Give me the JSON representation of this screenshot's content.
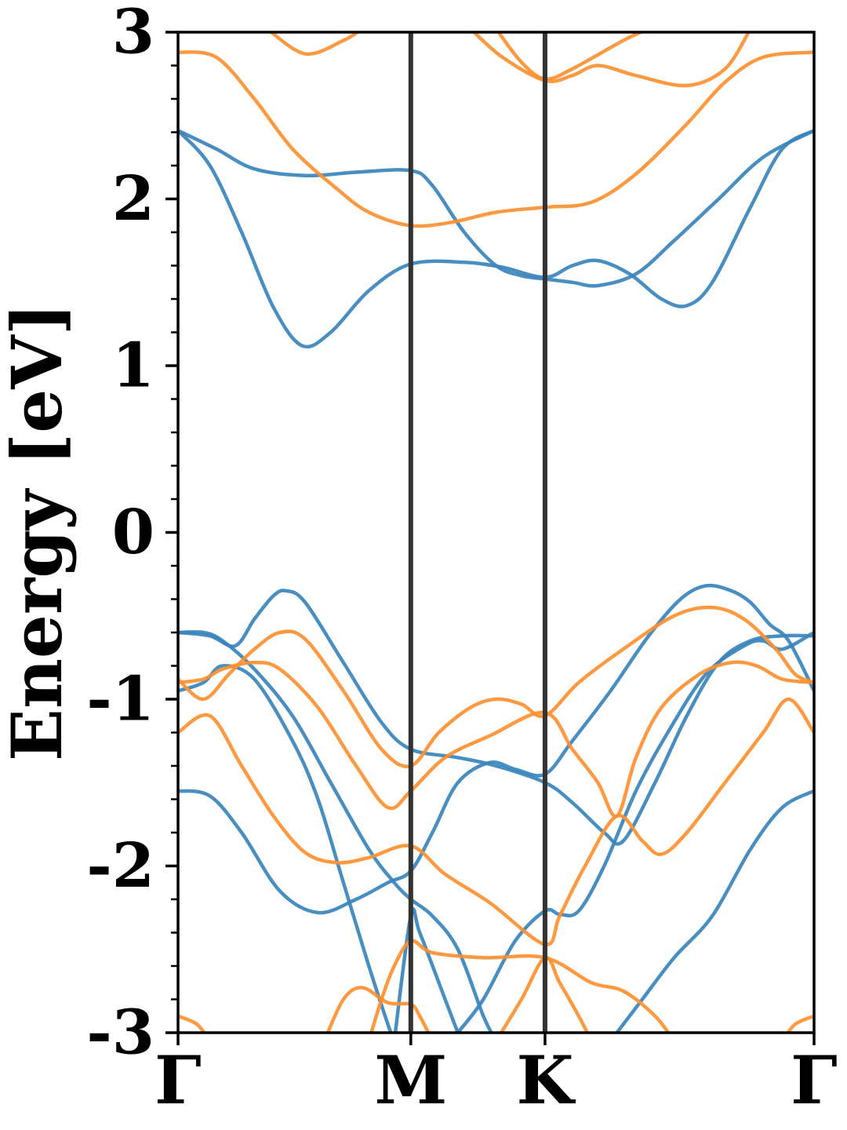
{
  "chart_data": {
    "type": "line",
    "title": "",
    "xlabel": "",
    "ylabel": "Energy [eV]",
    "ylim": [
      -3,
      3
    ],
    "xlim": [
      0,
      1
    ],
    "grid": false,
    "legend": "none",
    "yticks": [
      {
        "value": 3,
        "label": "3"
      },
      {
        "value": 2,
        "label": "2"
      },
      {
        "value": 1,
        "label": "1"
      },
      {
        "value": 0,
        "label": "0"
      },
      {
        "value": -1,
        "label": "-1"
      },
      {
        "value": -2,
        "label": "-2"
      },
      {
        "value": -3,
        "label": "-3"
      }
    ],
    "high_symmetry_points": [
      {
        "label": "Γ",
        "x": 0.0
      },
      {
        "label": "M",
        "x": 0.366
      },
      {
        "label": "K",
        "x": 0.577
      },
      {
        "label": "Γ",
        "x": 1.0
      }
    ],
    "colors": {
      "spin_up": "#3a84bb",
      "spin_down": "#fd9030",
      "kpath_line": "#333333",
      "axis": "#000000"
    },
    "series": [
      {
        "group": "blue",
        "color": "#3a84bb",
        "points": [
          [
            0,
            2.41
          ],
          [
            0.06,
            2.3
          ],
          [
            0.12,
            2.18
          ],
          [
            0.2,
            2.14
          ],
          [
            0.28,
            2.16
          ],
          [
            0.366,
            2.17
          ],
          [
            0.4,
            2.08
          ],
          [
            0.45,
            1.8
          ],
          [
            0.5,
            1.6
          ],
          [
            0.54,
            1.54
          ],
          [
            0.577,
            1.52
          ],
          [
            0.62,
            1.5
          ],
          [
            0.66,
            1.48
          ],
          [
            0.72,
            1.55
          ],
          [
            0.78,
            1.75
          ],
          [
            0.85,
            2.0
          ],
          [
            0.92,
            2.25
          ],
          [
            1,
            2.41
          ]
        ]
      },
      {
        "group": "blue",
        "color": "#3a84bb",
        "points": [
          [
            0,
            2.41
          ],
          [
            0.05,
            2.2
          ],
          [
            0.1,
            1.8
          ],
          [
            0.15,
            1.35
          ],
          [
            0.195,
            1.12
          ],
          [
            0.24,
            1.2
          ],
          [
            0.3,
            1.45
          ],
          [
            0.366,
            1.61
          ],
          [
            0.45,
            1.62
          ],
          [
            0.51,
            1.59
          ],
          [
            0.577,
            1.53
          ],
          [
            0.62,
            1.6
          ],
          [
            0.66,
            1.63
          ],
          [
            0.71,
            1.55
          ],
          [
            0.76,
            1.4
          ],
          [
            0.8,
            1.36
          ],
          [
            0.84,
            1.5
          ],
          [
            0.9,
            1.95
          ],
          [
            0.95,
            2.3
          ],
          [
            1,
            2.41
          ]
        ]
      },
      {
        "group": "orange",
        "color": "#fd9030",
        "points": [
          [
            0,
            2.88
          ],
          [
            0.06,
            2.85
          ],
          [
            0.12,
            2.6
          ],
          [
            0.18,
            2.3
          ],
          [
            0.25,
            2.06
          ],
          [
            0.3,
            1.92
          ],
          [
            0.366,
            1.84
          ],
          [
            0.43,
            1.86
          ],
          [
            0.5,
            1.92
          ],
          [
            0.577,
            1.95
          ],
          [
            0.65,
            1.98
          ],
          [
            0.72,
            2.15
          ],
          [
            0.8,
            2.45
          ],
          [
            0.86,
            2.7
          ],
          [
            0.92,
            2.85
          ],
          [
            1,
            2.88
          ]
        ]
      },
      {
        "group": "orange",
        "color": "#fd9030",
        "points": [
          [
            0.14,
            3.02
          ],
          [
            0.2,
            2.87
          ],
          [
            0.26,
            2.95
          ],
          [
            0.29,
            3.02
          ]
        ]
      },
      {
        "group": "orange",
        "color": "#fd9030",
        "points": [
          [
            0.46,
            3.02
          ],
          [
            0.51,
            2.85
          ],
          [
            0.577,
            2.71
          ],
          [
            0.62,
            2.74
          ],
          [
            0.66,
            2.8
          ],
          [
            0.72,
            2.74
          ],
          [
            0.8,
            2.68
          ],
          [
            0.86,
            2.78
          ],
          [
            0.9,
            3.02
          ]
        ]
      },
      {
        "group": "orange",
        "color": "#fd9030",
        "points": [
          [
            0.5,
            3.02
          ],
          [
            0.54,
            2.82
          ],
          [
            0.577,
            2.72
          ],
          [
            0.62,
            2.78
          ],
          [
            0.7,
            2.95
          ],
          [
            0.74,
            3.02
          ]
        ]
      },
      {
        "group": "blue",
        "color": "#3a84bb",
        "points": [
          [
            0,
            -0.6
          ],
          [
            0.05,
            -0.62
          ],
          [
            0.09,
            -0.68
          ],
          [
            0.12,
            -0.52
          ],
          [
            0.15,
            -0.38
          ],
          [
            0.17,
            -0.35
          ],
          [
            0.2,
            -0.42
          ],
          [
            0.26,
            -0.78
          ],
          [
            0.32,
            -1.14
          ],
          [
            0.366,
            -1.3
          ],
          [
            0.44,
            -1.35
          ],
          [
            0.5,
            -1.4
          ],
          [
            0.577,
            -1.5
          ],
          [
            0.62,
            -1.62
          ],
          [
            0.67,
            -1.8
          ],
          [
            0.7,
            -1.85
          ],
          [
            0.75,
            -1.5
          ],
          [
            0.8,
            -1.1
          ],
          [
            0.85,
            -0.78
          ],
          [
            0.9,
            -0.65
          ],
          [
            0.95,
            -0.62
          ],
          [
            1,
            -0.62
          ]
        ]
      },
      {
        "group": "blue",
        "color": "#3a84bb",
        "points": [
          [
            0,
            -0.6
          ],
          [
            0.04,
            -0.6
          ],
          [
            0.07,
            -0.65
          ],
          [
            0.12,
            -0.82
          ],
          [
            0.18,
            -1.1
          ],
          [
            0.24,
            -1.5
          ],
          [
            0.3,
            -1.9
          ],
          [
            0.34,
            -2.1
          ],
          [
            0.366,
            -2.2
          ],
          [
            0.4,
            -2.3
          ],
          [
            0.44,
            -2.5
          ],
          [
            0.48,
            -2.9
          ],
          [
            0.5,
            -3.05
          ]
        ]
      },
      {
        "group": "blue",
        "color": "#3a84bb",
        "points": [
          [
            0,
            -0.95
          ],
          [
            0.04,
            -0.9
          ],
          [
            0.07,
            -0.8
          ],
          [
            0.12,
            -0.88
          ],
          [
            0.18,
            -1.25
          ],
          [
            0.22,
            -1.6
          ],
          [
            0.26,
            -2.1
          ],
          [
            0.3,
            -2.6
          ],
          [
            0.33,
            -2.95
          ],
          [
            0.34,
            -3.05
          ]
        ]
      },
      {
        "group": "blue",
        "color": "#3a84bb",
        "points": [
          [
            0.34,
            -3.05
          ],
          [
            0.366,
            -2.3
          ],
          [
            0.38,
            -2.4
          ],
          [
            0.42,
            -2.8
          ],
          [
            0.44,
            -3.0
          ]
        ]
      },
      {
        "group": "blue",
        "color": "#3a84bb",
        "points": [
          [
            0,
            -1.55
          ],
          [
            0.05,
            -1.58
          ],
          [
            0.1,
            -1.8
          ],
          [
            0.16,
            -2.15
          ],
          [
            0.22,
            -2.28
          ],
          [
            0.28,
            -2.2
          ],
          [
            0.33,
            -2.1
          ],
          [
            0.366,
            -2.03
          ],
          [
            0.4,
            -1.8
          ],
          [
            0.44,
            -1.5
          ],
          [
            0.49,
            -1.38
          ],
          [
            0.53,
            -1.42
          ],
          [
            0.577,
            -1.45
          ],
          [
            0.62,
            -1.25
          ],
          [
            0.68,
            -0.95
          ],
          [
            0.74,
            -0.62
          ],
          [
            0.79,
            -0.4
          ],
          [
            0.83,
            -0.32
          ],
          [
            0.87,
            -0.35
          ],
          [
            0.9,
            -0.42
          ],
          [
            0.93,
            -0.55
          ],
          [
            0.96,
            -0.65
          ],
          [
            1,
            -0.95
          ]
        ]
      },
      {
        "group": "blue",
        "color": "#3a84bb",
        "points": [
          [
            0.44,
            -3.0
          ],
          [
            0.48,
            -2.8
          ],
          [
            0.53,
            -2.45
          ],
          [
            0.577,
            -2.27
          ],
          [
            0.6,
            -2.29
          ],
          [
            0.63,
            -2.27
          ],
          [
            0.67,
            -2.0
          ],
          [
            0.72,
            -1.55
          ],
          [
            0.77,
            -1.2
          ],
          [
            0.83,
            -0.85
          ],
          [
            0.89,
            -0.68
          ],
          [
            0.92,
            -0.65
          ],
          [
            0.95,
            -0.7
          ],
          [
            1,
            -0.6
          ]
        ]
      },
      {
        "group": "blue",
        "color": "#3a84bb",
        "points": [
          [
            0.68,
            -3.05
          ],
          [
            0.73,
            -2.8
          ],
          [
            0.78,
            -2.55
          ],
          [
            0.84,
            -2.3
          ],
          [
            0.9,
            -1.9
          ],
          [
            0.95,
            -1.65
          ],
          [
            1,
            -1.55
          ]
        ]
      },
      {
        "group": "orange",
        "color": "#fd9030",
        "points": [
          [
            0,
            -0.9
          ],
          [
            0.04,
            -0.88
          ],
          [
            0.07,
            -0.82
          ],
          [
            0.12,
            -0.78
          ],
          [
            0.16,
            -0.82
          ],
          [
            0.22,
            -1.05
          ],
          [
            0.28,
            -1.4
          ],
          [
            0.33,
            -1.65
          ],
          [
            0.366,
            -1.55
          ],
          [
            0.42,
            -1.35
          ],
          [
            0.49,
            -1.22
          ],
          [
            0.577,
            -1.08
          ],
          [
            0.62,
            -1.3
          ],
          [
            0.66,
            -1.5
          ],
          [
            0.69,
            -1.7
          ],
          [
            0.72,
            -1.35
          ],
          [
            0.76,
            -1.05
          ],
          [
            0.82,
            -0.85
          ],
          [
            0.87,
            -0.78
          ],
          [
            0.91,
            -0.8
          ],
          [
            0.95,
            -0.88
          ],
          [
            1,
            -0.9
          ]
        ]
      },
      {
        "group": "orange",
        "color": "#fd9030",
        "points": [
          [
            0,
            -0.88
          ],
          [
            0.04,
            -1.0
          ],
          [
            0.08,
            -0.85
          ],
          [
            0.12,
            -0.7
          ],
          [
            0.16,
            -0.6
          ],
          [
            0.2,
            -0.64
          ],
          [
            0.26,
            -0.95
          ],
          [
            0.32,
            -1.3
          ],
          [
            0.366,
            -1.4
          ],
          [
            0.41,
            -1.2
          ],
          [
            0.46,
            -1.05
          ],
          [
            0.5,
            -1.0
          ],
          [
            0.54,
            -1.03
          ],
          [
            0.577,
            -1.1
          ],
          [
            0.63,
            -0.9
          ],
          [
            0.7,
            -0.7
          ],
          [
            0.78,
            -0.5
          ],
          [
            0.84,
            -0.45
          ],
          [
            0.89,
            -0.52
          ],
          [
            0.94,
            -0.7
          ],
          [
            0.97,
            -0.85
          ],
          [
            1,
            -0.9
          ]
        ]
      },
      {
        "group": "orange",
        "color": "#fd9030",
        "points": [
          [
            0,
            -1.2
          ],
          [
            0.05,
            -1.1
          ],
          [
            0.1,
            -1.4
          ],
          [
            0.15,
            -1.7
          ],
          [
            0.2,
            -1.92
          ],
          [
            0.25,
            -1.98
          ],
          [
            0.3,
            -1.95
          ],
          [
            0.366,
            -1.88
          ],
          [
            0.42,
            -2.05
          ],
          [
            0.49,
            -2.22
          ],
          [
            0.577,
            -2.47
          ],
          [
            0.6,
            -2.3
          ],
          [
            0.64,
            -2.0
          ],
          [
            0.69,
            -1.7
          ],
          [
            0.73,
            -1.85
          ],
          [
            0.76,
            -1.93
          ],
          [
            0.8,
            -1.8
          ],
          [
            0.86,
            -1.5
          ],
          [
            0.92,
            -1.2
          ],
          [
            0.96,
            -1.0
          ],
          [
            1,
            -1.2
          ]
        ]
      },
      {
        "group": "orange",
        "color": "#fd9030",
        "points": [
          [
            0.3,
            -3.05
          ],
          [
            0.32,
            -2.8
          ],
          [
            0.34,
            -2.6
          ],
          [
            0.366,
            -2.45
          ],
          [
            0.4,
            -2.52
          ],
          [
            0.48,
            -2.55
          ],
          [
            0.577,
            -2.55
          ],
          [
            0.65,
            -2.7
          ],
          [
            0.7,
            -2.75
          ],
          [
            0.75,
            -2.9
          ],
          [
            0.78,
            -3.05
          ]
        ]
      },
      {
        "group": "orange",
        "color": "#fd9030",
        "points": [
          [
            0.23,
            -3.05
          ],
          [
            0.26,
            -2.8
          ],
          [
            0.29,
            -2.73
          ],
          [
            0.33,
            -2.82
          ],
          [
            0.366,
            -2.83
          ],
          [
            0.38,
            -2.9
          ],
          [
            0.4,
            -3.05
          ]
        ]
      },
      {
        "group": "orange",
        "color": "#fd9030",
        "points": [
          [
            0.5,
            -3.05
          ],
          [
            0.54,
            -2.8
          ],
          [
            0.577,
            -2.55
          ],
          [
            0.6,
            -2.7
          ],
          [
            0.63,
            -2.9
          ],
          [
            0.65,
            -3.05
          ]
        ]
      },
      {
        "group": "orange",
        "color": "#fd9030",
        "points": [
          [
            0,
            -2.9
          ],
          [
            0.03,
            -2.95
          ],
          [
            0.05,
            -3.05
          ]
        ]
      },
      {
        "group": "orange",
        "color": "#fd9030",
        "points": [
          [
            0.95,
            -3.05
          ],
          [
            0.97,
            -2.95
          ],
          [
            1,
            -2.9
          ]
        ]
      }
    ]
  }
}
